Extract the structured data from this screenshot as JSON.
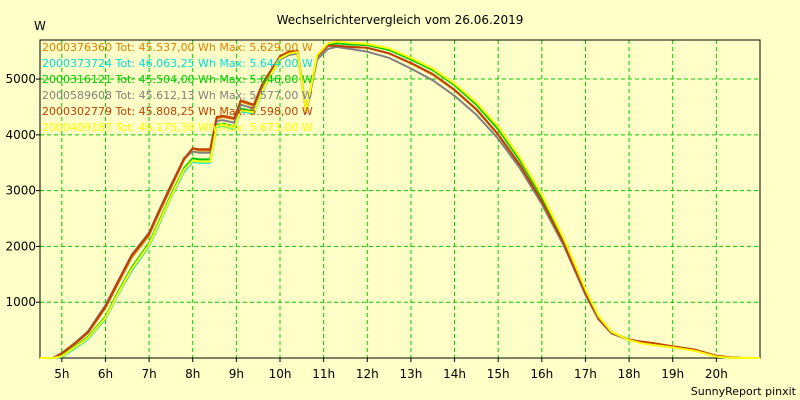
{
  "chart_data": {
    "type": "line",
    "title": "Wechselrichtervergleich vom 26.06.2019",
    "ylabel": "W",
    "footer": "SunnyReport pinxit",
    "xlim": [
      4.5,
      21.0
    ],
    "ylim": [
      0,
      5700
    ],
    "x_ticks": [
      5,
      6,
      7,
      8,
      9,
      10,
      11,
      12,
      13,
      14,
      15,
      16,
      17,
      18,
      19,
      20
    ],
    "x_tick_labels": [
      "5h",
      "6h",
      "7h",
      "8h",
      "9h",
      "10h",
      "11h",
      "12h",
      "13h",
      "14h",
      "15h",
      "16h",
      "17h",
      "18h",
      "19h",
      "20h"
    ],
    "y_ticks": [
      1000,
      2000,
      3000,
      4000,
      5000
    ],
    "y_tick_labels": [
      "1000",
      "2000",
      "3000",
      "4000",
      "5000"
    ],
    "grid": true,
    "legend_position": "top-left",
    "colors": {
      "background": "#ffffc8",
      "grid": "#00cc00"
    },
    "series": [
      {
        "name": "2000376360 Tot: 45.537,00 Wh Max: 5.629,00 W",
        "color": "#e08000",
        "x": [
          4.5,
          4.8,
          5.0,
          5.3,
          5.6,
          6.0,
          6.3,
          6.6,
          7.0,
          7.2,
          7.5,
          7.8,
          8.0,
          8.15,
          8.4,
          8.55,
          8.7,
          8.95,
          9.1,
          9.4,
          9.6,
          9.8,
          10.0,
          10.2,
          10.4,
          10.6,
          10.85,
          11.1,
          11.3,
          11.6,
          12.0,
          12.5,
          13.0,
          13.5,
          14.0,
          14.5,
          15.0,
          15.5,
          16.0,
          16.5,
          17.0,
          17.3,
          17.6,
          18.0,
          18.3,
          18.6,
          19.0,
          19.5,
          20.0,
          20.3,
          20.6,
          21.0
        ],
        "values": [
          0,
          0,
          80,
          250,
          450,
          900,
          1350,
          1800,
          2200,
          2550,
          3050,
          3550,
          3750,
          3720,
          3720,
          4300,
          4320,
          4280,
          4600,
          4520,
          4900,
          5150,
          5400,
          5480,
          5500,
          4420,
          5400,
          5600,
          5600,
          5580,
          5560,
          5460,
          5280,
          5080,
          4800,
          4450,
          4000,
          3450,
          2800,
          2050,
          1150,
          700,
          450,
          330,
          290,
          260,
          210,
          150,
          40,
          10,
          0,
          0
        ]
      },
      {
        "name": "2000373724 Tot: 46.063,25 Wh Max: 5.644,00 W",
        "color": "#00e0e0",
        "x": [
          4.5,
          4.8,
          5.0,
          5.3,
          5.6,
          6.0,
          6.3,
          6.6,
          7.0,
          7.2,
          7.5,
          7.8,
          8.0,
          8.15,
          8.4,
          8.55,
          8.7,
          8.95,
          9.1,
          9.4,
          9.6,
          9.8,
          10.0,
          10.2,
          10.4,
          10.6,
          10.85,
          11.1,
          11.3,
          11.6,
          12.0,
          12.5,
          13.0,
          13.5,
          14.0,
          14.5,
          15.0,
          15.5,
          16.0,
          16.5,
          17.0,
          17.3,
          17.6,
          18.0,
          18.3,
          18.6,
          19.0,
          19.5,
          20.0,
          20.3,
          20.6,
          21.0
        ],
        "values": [
          0,
          0,
          20,
          170,
          340,
          700,
          1150,
          1560,
          2010,
          2340,
          2870,
          3340,
          3520,
          3500,
          3500,
          4140,
          4160,
          4100,
          4420,
          4380,
          4770,
          5080,
          5360,
          5450,
          5480,
          4420,
          5420,
          5620,
          5640,
          5620,
          5610,
          5530,
          5360,
          5170,
          4900,
          4560,
          4120,
          3560,
          2900,
          2120,
          1200,
          730,
          460,
          320,
          270,
          240,
          200,
          140,
          30,
          5,
          0,
          0
        ]
      },
      {
        "name": "2000316121 Tot: 45.504,00 Wh Max: 5.646,00 W",
        "color": "#00cc00",
        "x": [
          4.5,
          4.8,
          5.0,
          5.3,
          5.6,
          6.0,
          6.3,
          6.6,
          7.0,
          7.2,
          7.5,
          7.8,
          8.0,
          8.15,
          8.4,
          8.55,
          8.7,
          8.95,
          9.1,
          9.4,
          9.6,
          9.8,
          10.0,
          10.2,
          10.4,
          10.6,
          10.85,
          11.1,
          11.3,
          11.6,
          12.0,
          12.5,
          13.0,
          13.5,
          14.0,
          14.5,
          15.0,
          15.5,
          16.0,
          16.5,
          17.0,
          17.3,
          17.6,
          18.0,
          18.3,
          18.6,
          19.0,
          19.5,
          20.0,
          20.3,
          20.6,
          21.0
        ],
        "values": [
          0,
          0,
          40,
          200,
          380,
          740,
          1200,
          1620,
          2060,
          2400,
          2920,
          3400,
          3580,
          3560,
          3560,
          4180,
          4200,
          4150,
          4470,
          4420,
          4810,
          5110,
          5380,
          5460,
          5490,
          4420,
          5410,
          5610,
          5646,
          5625,
          5610,
          5520,
          5350,
          5160,
          4890,
          4540,
          4100,
          3540,
          2880,
          2110,
          1190,
          720,
          460,
          330,
          280,
          250,
          205,
          145,
          35,
          8,
          0,
          0
        ]
      },
      {
        "name": "2000589608 Tot: 45.612,13 Wh Max: 5.577,00 W",
        "color": "#808080",
        "x": [
          4.5,
          4.8,
          5.0,
          5.3,
          5.6,
          6.0,
          6.3,
          6.6,
          7.0,
          7.2,
          7.5,
          7.8,
          8.0,
          8.15,
          8.4,
          8.55,
          8.7,
          8.95,
          9.1,
          9.4,
          9.6,
          9.8,
          10.0,
          10.2,
          10.4,
          10.6,
          10.85,
          11.1,
          11.3,
          11.6,
          12.0,
          12.5,
          13.0,
          13.5,
          14.0,
          14.5,
          15.0,
          15.5,
          16.0,
          16.5,
          17.0,
          17.3,
          17.6,
          18.0,
          18.3,
          18.6,
          19.0,
          19.5,
          20.0,
          20.3,
          20.6,
          21.0
        ],
        "values": [
          0,
          0,
          90,
          270,
          480,
          950,
          1400,
          1850,
          2250,
          2600,
          3100,
          3580,
          3700,
          3680,
          3680,
          4250,
          4260,
          4220,
          4540,
          4470,
          4840,
          5100,
          5350,
          5430,
          5460,
          4400,
          5350,
          5540,
          5577,
          5540,
          5490,
          5380,
          5190,
          4980,
          4700,
          4360,
          3930,
          3400,
          2760,
          2020,
          1130,
          690,
          440,
          320,
          280,
          255,
          205,
          145,
          35,
          8,
          0,
          0
        ]
      },
      {
        "name": "2000302779 Tot: 45.808,25 Wh Max: 5.598,00 W",
        "color": "#c04000",
        "x": [
          4.5,
          4.8,
          5.0,
          5.3,
          5.6,
          6.0,
          6.3,
          6.6,
          7.0,
          7.2,
          7.5,
          7.8,
          8.0,
          8.15,
          8.4,
          8.55,
          8.7,
          8.95,
          9.1,
          9.4,
          9.6,
          9.8,
          10.0,
          10.2,
          10.4,
          10.6,
          10.85,
          11.1,
          11.3,
          11.6,
          12.0,
          12.5,
          13.0,
          13.5,
          14.0,
          14.5,
          15.0,
          15.5,
          16.0,
          16.5,
          17.0,
          17.3,
          17.6,
          18.0,
          18.3,
          18.6,
          19.0,
          19.5,
          20.0,
          20.3,
          20.6,
          21.0
        ],
        "values": [
          0,
          0,
          85,
          260,
          460,
          920,
          1380,
          1830,
          2230,
          2580,
          3080,
          3570,
          3760,
          3740,
          3740,
          4320,
          4340,
          4300,
          4620,
          4540,
          4920,
          5170,
          5410,
          5490,
          5510,
          4430,
          5410,
          5598,
          5598,
          5575,
          5560,
          5460,
          5290,
          5090,
          4810,
          4460,
          4010,
          3460,
          2810,
          2060,
          1160,
          710,
          450,
          330,
          290,
          260,
          210,
          150,
          40,
          10,
          0,
          0
        ]
      },
      {
        "name": "2000409187 Tot: 46.175,38 Wh Max: 5.673,00 W",
        "color": "#ffff00",
        "x": [
          4.5,
          4.8,
          5.0,
          5.3,
          5.6,
          6.0,
          6.3,
          6.6,
          7.0,
          7.2,
          7.5,
          7.8,
          8.0,
          8.15,
          8.4,
          8.55,
          8.7,
          8.95,
          9.1,
          9.4,
          9.6,
          9.8,
          10.0,
          10.2,
          10.4,
          10.6,
          10.85,
          11.1,
          11.3,
          11.6,
          12.0,
          12.5,
          13.0,
          13.5,
          14.0,
          14.5,
          15.0,
          15.5,
          16.0,
          16.5,
          17.0,
          17.3,
          17.6,
          18.0,
          18.3,
          18.6,
          19.0,
          19.5,
          20.0,
          20.3,
          20.6,
          21.0
        ],
        "values": [
          0,
          0,
          30,
          190,
          360,
          720,
          1170,
          1590,
          2030,
          2370,
          2890,
          3370,
          3540,
          3520,
          3520,
          4160,
          4180,
          4120,
          4440,
          4400,
          4790,
          5090,
          5370,
          5455,
          5485,
          4420,
          5430,
          5640,
          5673,
          5650,
          5630,
          5550,
          5380,
          5190,
          4920,
          4580,
          4150,
          3590,
          2930,
          2150,
          1230,
          750,
          470,
          320,
          260,
          230,
          190,
          130,
          25,
          3,
          0,
          0
        ]
      }
    ]
  }
}
